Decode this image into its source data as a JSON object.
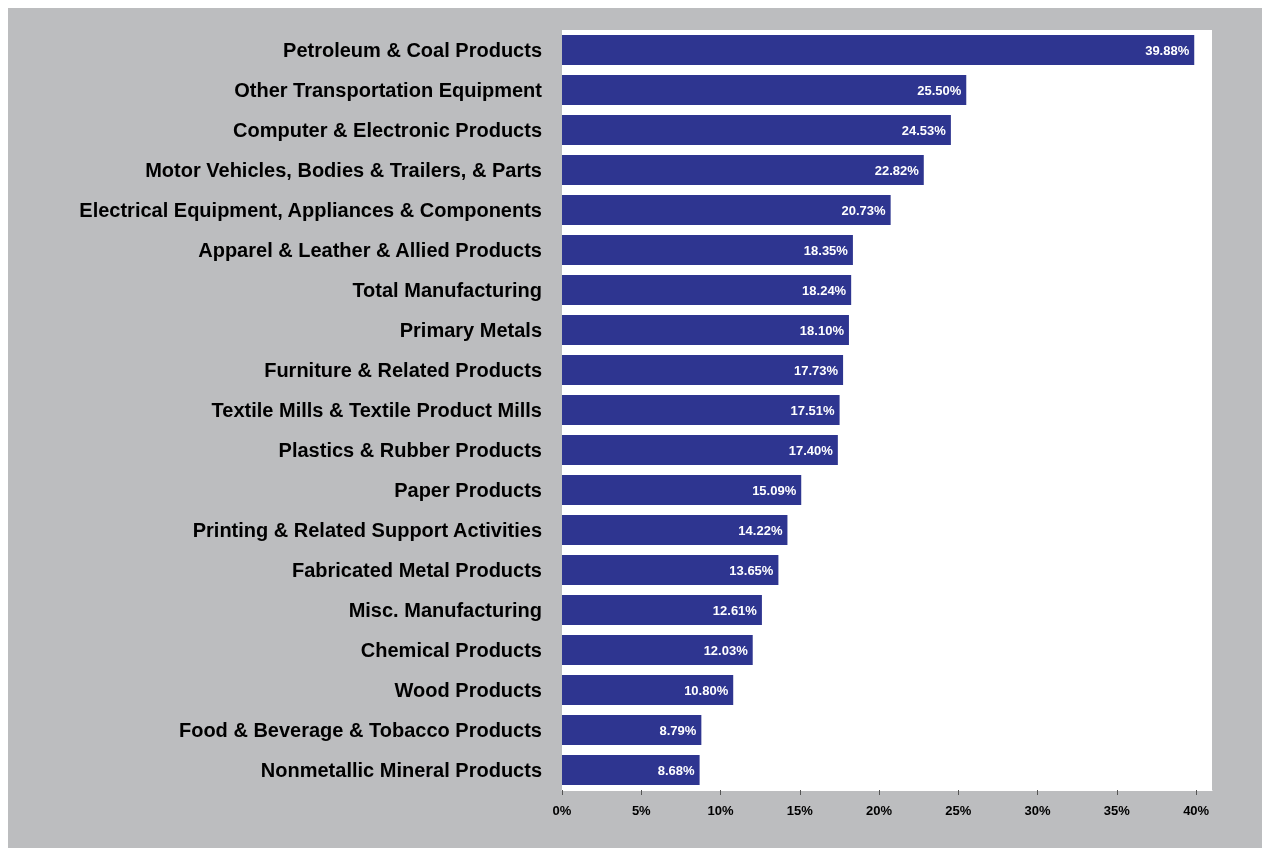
{
  "chart_data": {
    "type": "bar",
    "orientation": "horizontal",
    "categories": [
      "Petroleum & Coal Products",
      "Other Transportation Equipment",
      "Computer & Electronic Products",
      "Motor Vehicles, Bodies & Trailers, & Parts",
      "Electrical Equipment, Appliances & Components",
      "Apparel & Leather & Allied Products",
      "Total Manufacturing",
      "Primary Metals",
      "Furniture & Related Products",
      "Textile Mills & Textile Product Mills",
      "Plastics & Rubber Products",
      "Paper Products",
      "Printing & Related Support Activities",
      "Fabricated Metal Products",
      "Misc. Manufacturing",
      "Chemical Products",
      "Wood Products",
      "Food & Beverage & Tobacco Products",
      "Nonmetallic Mineral Products"
    ],
    "values": [
      39.88,
      25.5,
      24.53,
      22.82,
      20.73,
      18.35,
      18.24,
      18.1,
      17.73,
      17.51,
      17.4,
      15.09,
      14.22,
      13.65,
      12.61,
      12.03,
      10.8,
      8.79,
      8.68
    ],
    "value_labels": [
      "39.88%",
      "25.50%",
      "24.53%",
      "22.82%",
      "20.73%",
      "18.35%",
      "18.24%",
      "18.10%",
      "17.73%",
      "17.51%",
      "17.40%",
      "15.09%",
      "14.22%",
      "13.65%",
      "12.61%",
      "12.03%",
      "10.80%",
      "8.79%",
      "8.68%"
    ],
    "color": "#2e3590",
    "xlim": [
      0,
      41
    ],
    "xticks": [
      {
        "value": 0,
        "label": "0%"
      },
      {
        "value": 5,
        "label": "5%"
      },
      {
        "value": 10,
        "label": "10%"
      },
      {
        "value": 15,
        "label": "15%"
      },
      {
        "value": 20,
        "label": "20%"
      },
      {
        "value": 25,
        "label": "25%"
      },
      {
        "value": 30,
        "label": "30%"
      },
      {
        "value": 35,
        "label": "35%"
      },
      {
        "value": 40,
        "label": "40%"
      }
    ],
    "grid": false
  }
}
